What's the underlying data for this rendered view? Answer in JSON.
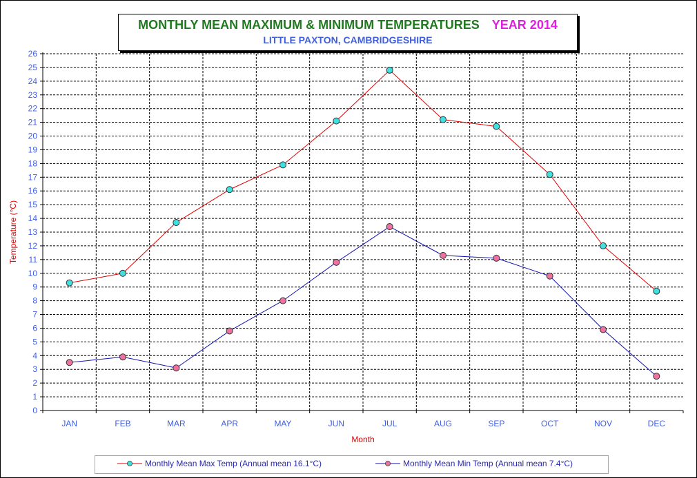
{
  "title": {
    "main": "MONTHLY  MEAN MAXIMUM & MINIMUM TEMPERATURES",
    "year": "YEAR 2014",
    "subtitle": "LITTLE PAXTON, CAMBRIDGESHIRE"
  },
  "colors": {
    "title_main": "#1f7a1f",
    "title_year": "#e020e0",
    "subtitle": "#3f5fe0",
    "axis_label": "#e00000",
    "tick_label": "#3f5fe0",
    "max_line": "#e00000",
    "min_line": "#1010b0",
    "max_marker": "#40e0e0",
    "min_marker": "#f070a0"
  },
  "chart_data": {
    "type": "line",
    "categories": [
      "JAN",
      "FEB",
      "MAR",
      "APR",
      "MAY",
      "JUN",
      "JUL",
      "AUG",
      "SEP",
      "OCT",
      "NOV",
      "DEC"
    ],
    "series": [
      {
        "name": "Monthly Mean Max Temp (Annual mean 16.1°C)",
        "values": [
          9.3,
          10.0,
          13.7,
          16.1,
          17.9,
          21.1,
          24.8,
          21.2,
          20.7,
          17.2,
          12.0,
          8.7
        ]
      },
      {
        "name": "Monthly Mean Min Temp (Annual mean 7.4°C)",
        "values": [
          3.5,
          3.9,
          3.1,
          5.8,
          8.0,
          10.8,
          13.4,
          11.3,
          11.1,
          9.8,
          5.9,
          2.5
        ]
      }
    ],
    "xlabel": "Month",
    "ylabel": "Temperature (°C)",
    "ylim": [
      0,
      26
    ],
    "ytick_step": 1,
    "grid": true,
    "legend_position": "bottom"
  }
}
